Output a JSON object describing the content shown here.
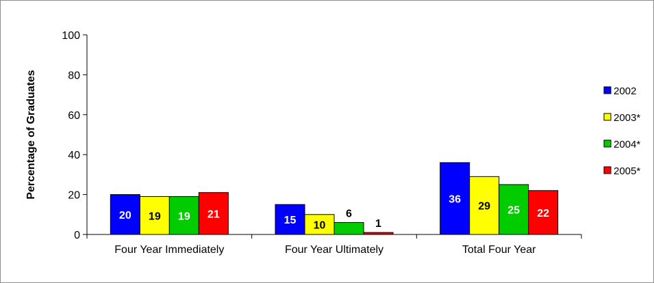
{
  "chart_data": {
    "type": "bar",
    "title": "",
    "xlabel": "",
    "ylabel": "Percentage of Graduates",
    "ylim": [
      0,
      100
    ],
    "yticks": [
      0,
      20,
      40,
      60,
      80,
      100
    ],
    "grid": false,
    "legend_position": "right",
    "categories": [
      "Four Year Immediately",
      "Four Year Ultimately",
      "Total Four Year"
    ],
    "series": [
      {
        "name": "2002",
        "color": "#0000ff",
        "label_color": "#ffffff",
        "values": [
          20,
          15,
          36
        ]
      },
      {
        "name": "2003*",
        "color": "#ffff00",
        "label_color": "#000000",
        "values": [
          19,
          10,
          29
        ]
      },
      {
        "name": "2004*",
        "color": "#00cc00",
        "label_color": "#ffffff",
        "values": [
          19,
          6,
          25
        ]
      },
      {
        "name": "2005*",
        "color": "#ff0000",
        "label_color": "#ffffff",
        "values": [
          21,
          1,
          22
        ]
      }
    ]
  }
}
